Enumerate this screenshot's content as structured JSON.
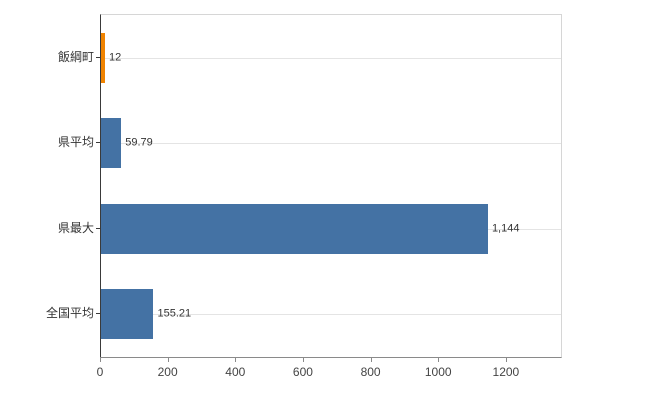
{
  "chart_data": {
    "type": "bar",
    "orientation": "horizontal",
    "title": "",
    "xlabel": "",
    "ylabel": "",
    "categories": [
      "飯綱町",
      "県平均",
      "県最大",
      "全国平均"
    ],
    "values": [
      12,
      59.79,
      1144,
      155.21
    ],
    "value_labels": [
      "12",
      "59.79",
      "1,144",
      "155.21"
    ],
    "bar_colors": [
      "#f08300",
      "#4472a4",
      "#4472a4",
      "#4472a4"
    ],
    "x_ticks": [
      0,
      200,
      400,
      600,
      800,
      1000,
      1200
    ],
    "x_tick_labels": [
      "0",
      "200",
      "400",
      "600",
      "800",
      "1000",
      "1200"
    ],
    "xlim": [
      0,
      1360
    ],
    "grid": "horizontal",
    "legend": "none"
  },
  "colors": {
    "highlight_bar": "#f08300",
    "default_bar": "#4472a4",
    "gridline": "#e4e4e4",
    "axis": "#3a3a3a",
    "background": "#ffffff"
  }
}
